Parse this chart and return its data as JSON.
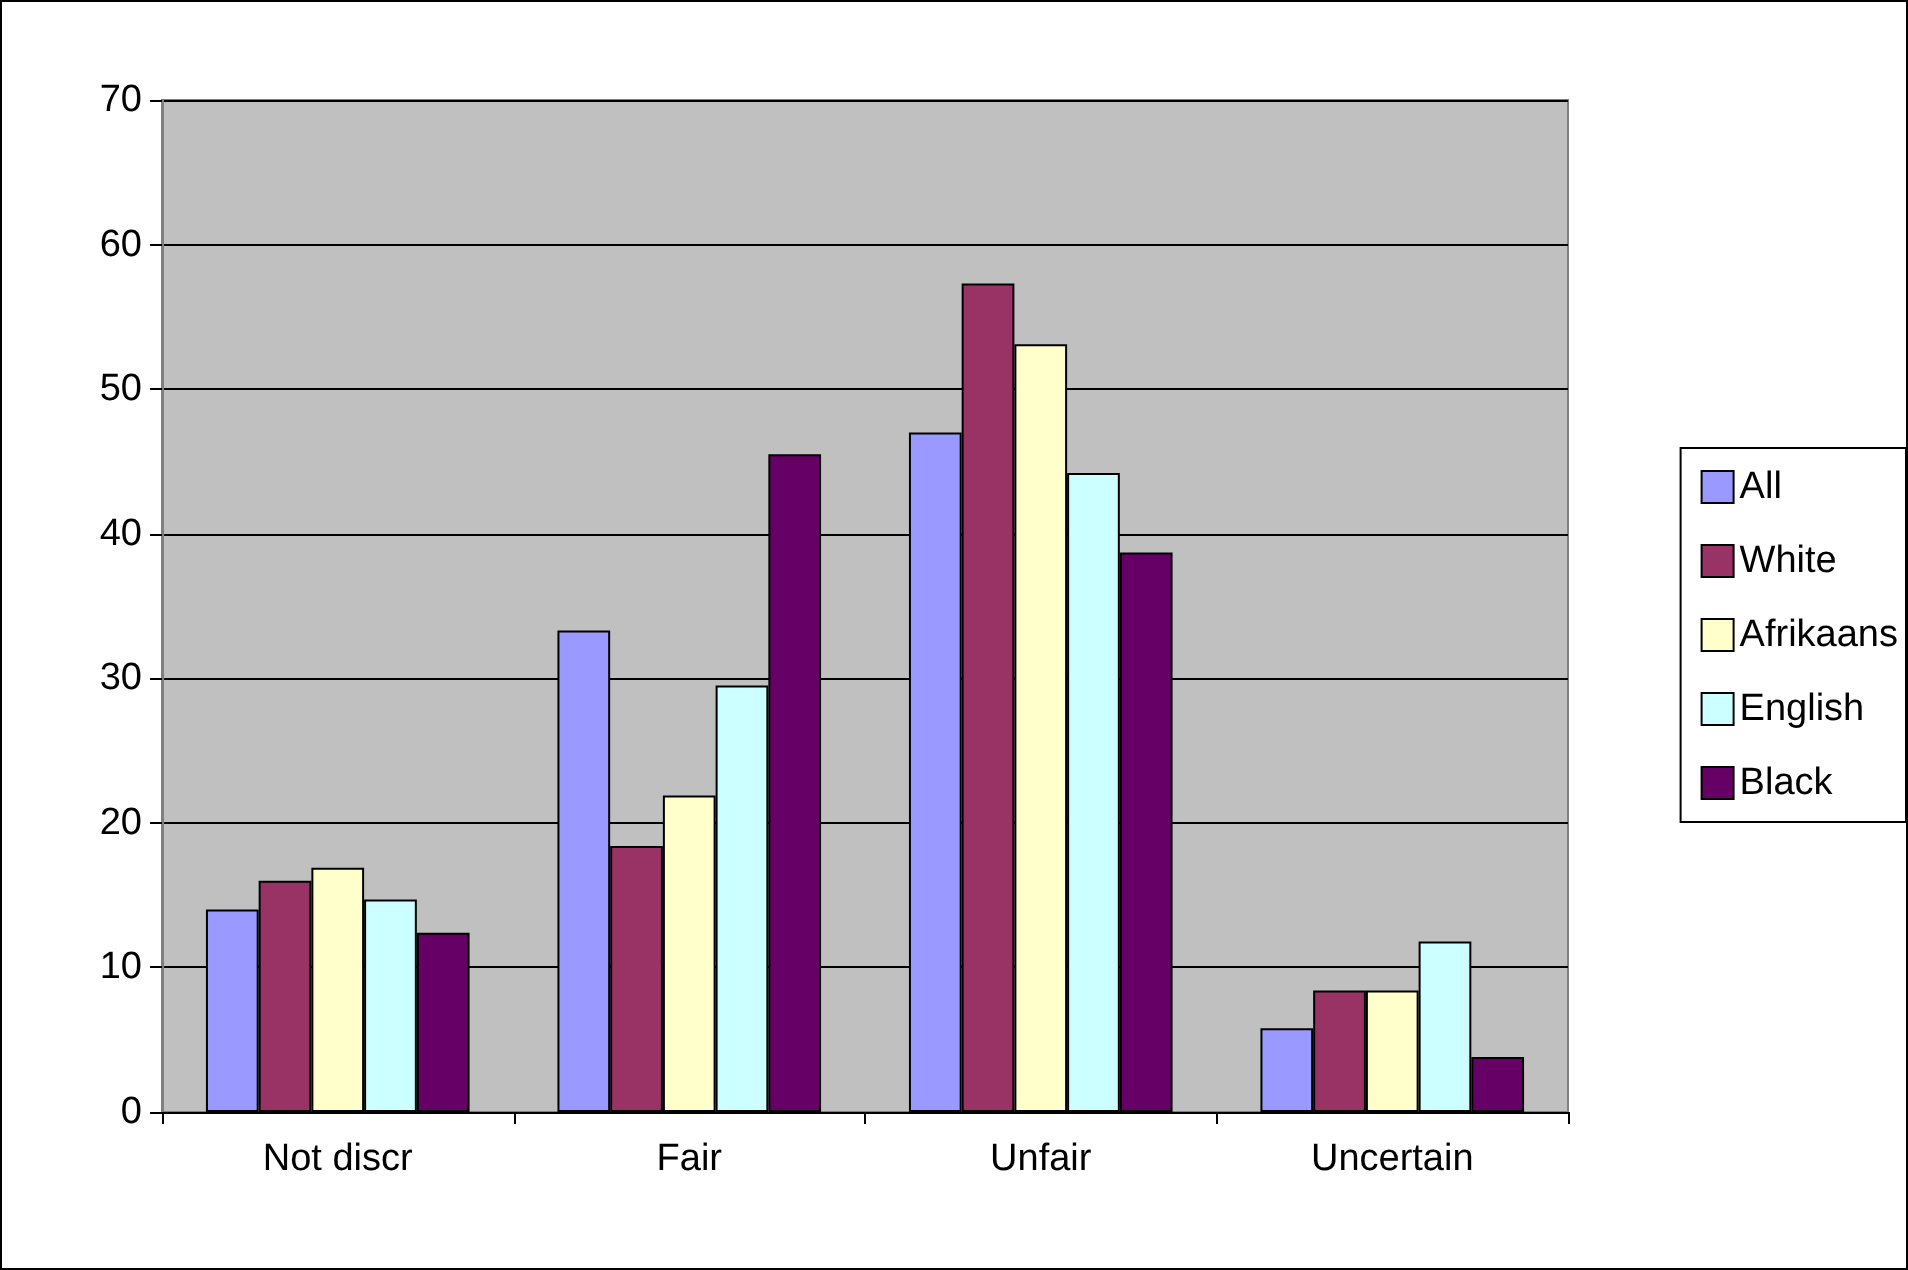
{
  "chart_data": {
    "type": "bar",
    "categories": [
      "Not discr",
      "Fair",
      "Unfair",
      "Uncertain"
    ],
    "series": [
      {
        "name": "All",
        "color": "#9999ff",
        "values": [
          14.0,
          33.3,
          47.0,
          5.8
        ]
      },
      {
        "name": "White",
        "color": "#993366",
        "values": [
          16.0,
          18.4,
          57.3,
          8.4
        ]
      },
      {
        "name": "Afrikaans",
        "color": "#ffffcc",
        "values": [
          16.9,
          21.9,
          53.1,
          8.4
        ]
      },
      {
        "name": "English",
        "color": "#ccffff",
        "values": [
          14.7,
          29.5,
          44.2,
          11.8
        ]
      },
      {
        "name": "Black",
        "color": "#660066",
        "values": [
          12.4,
          45.5,
          38.7,
          3.8
        ]
      }
    ],
    "ylim": [
      0,
      70
    ],
    "yticks": [
      0,
      10,
      20,
      30,
      40,
      50,
      60,
      70
    ],
    "grid": "y",
    "legend": "right"
  }
}
